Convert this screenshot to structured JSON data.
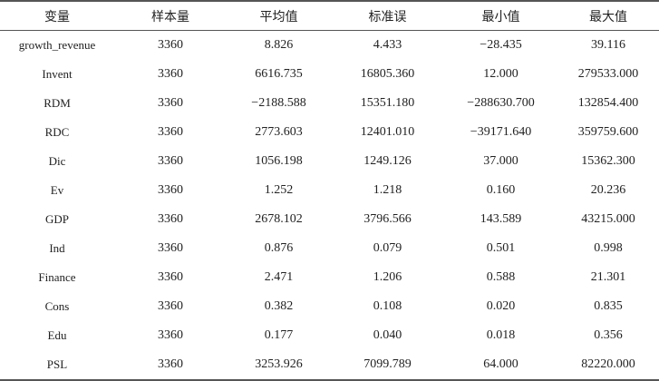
{
  "table": {
    "headers": [
      "变量",
      "样本量",
      "平均值",
      "标准误",
      "最小值",
      "最大值"
    ],
    "rows": [
      [
        "growth_revenue",
        "3360",
        "8.826",
        "4.433",
        "−28.435",
        "39.116"
      ],
      [
        "Invent",
        "3360",
        "6616.735",
        "16805.360",
        "12.000",
        "279533.000"
      ],
      [
        "RDM",
        "3360",
        "−2188.588",
        "15351.180",
        "−288630.700",
        "132854.400"
      ],
      [
        "RDC",
        "3360",
        "2773.603",
        "12401.010",
        "−39171.640",
        "359759.600"
      ],
      [
        "Dic",
        "3360",
        "1056.198",
        "1249.126",
        "37.000",
        "15362.300"
      ],
      [
        "Ev",
        "3360",
        "1.252",
        "1.218",
        "0.160",
        "20.236"
      ],
      [
        "GDP",
        "3360",
        "2678.102",
        "3796.566",
        "143.589",
        "43215.000"
      ],
      [
        "Ind",
        "3360",
        "0.876",
        "0.079",
        "0.501",
        "0.998"
      ],
      [
        "Finance",
        "3360",
        "2.471",
        "1.206",
        "0.588",
        "21.301"
      ],
      [
        "Cons",
        "3360",
        "0.382",
        "0.108",
        "0.020",
        "0.835"
      ],
      [
        "Edu",
        "3360",
        "0.177",
        "0.040",
        "0.018",
        "0.356"
      ],
      [
        "PSL",
        "3360",
        "3253.926",
        "7099.789",
        "64.000",
        "82220.000"
      ]
    ]
  }
}
